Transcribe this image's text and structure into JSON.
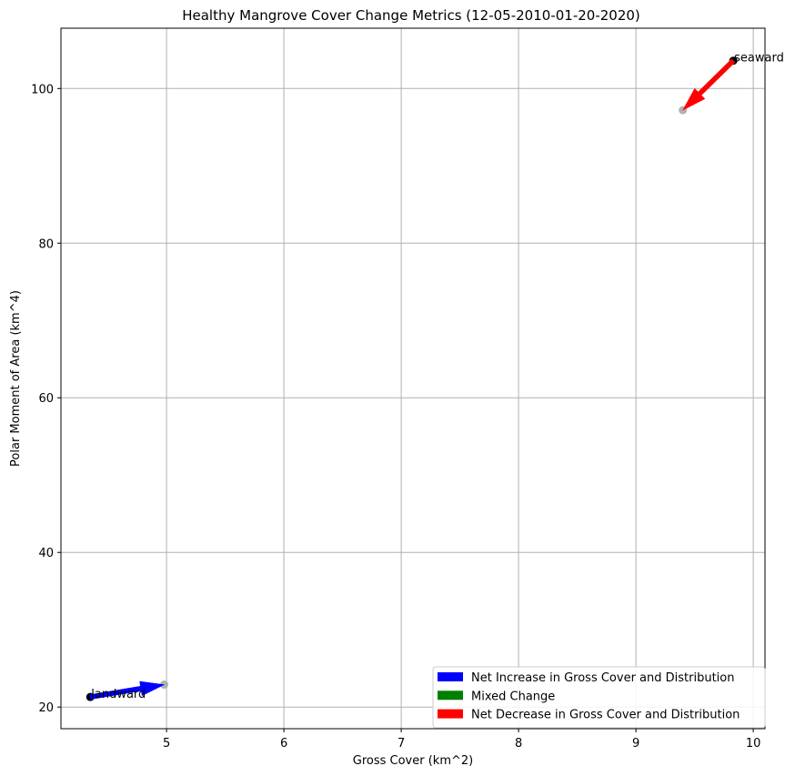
{
  "chart_data": {
    "type": "scatter",
    "title": "Healthy Mangrove Cover Change Metrics (12-05-2010-01-20-2020)",
    "xlabel": "Gross Cover (km^2)",
    "ylabel": "Polar Moment of Area (km^4)",
    "xlim": [
      4.1,
      10.1
    ],
    "ylim": [
      17.2,
      107.8
    ],
    "xticks": [
      5,
      6,
      7,
      8,
      9,
      10
    ],
    "yticks": [
      20,
      40,
      60,
      80,
      100
    ],
    "grid": true,
    "legend_placement": "lower-right",
    "legend": [
      {
        "label": "Net Increase in Gross Cover and Distribution",
        "color": "#0000ff"
      },
      {
        "label": "Mixed Change",
        "color": "#008000"
      },
      {
        "label": "Net Decrease in Gross Cover and Distribution",
        "color": "#ff0000"
      }
    ],
    "points": [
      {
        "label": "landward",
        "start": [
          4.35,
          21.3
        ],
        "end": [
          4.98,
          22.9
        ],
        "color": "#0000ff"
      },
      {
        "label": "seaward",
        "start": [
          9.83,
          103.6
        ],
        "end": [
          9.4,
          97.2
        ],
        "color": "#ff0000"
      }
    ]
  }
}
